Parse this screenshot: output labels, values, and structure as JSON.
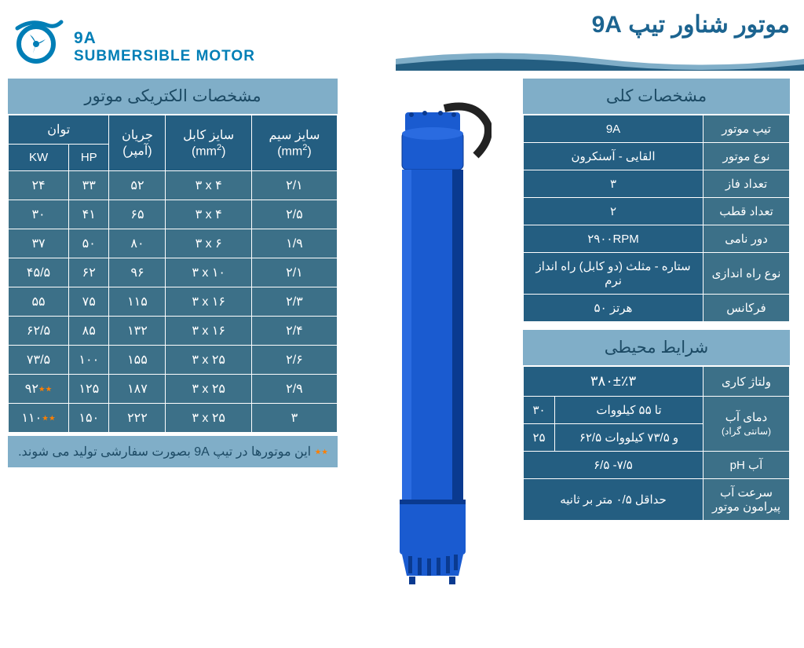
{
  "header": {
    "en_line1": "9A",
    "en_line2": "SUBMERSIBLE MOTOR",
    "fa_title": "موتور شناور تیپ 9A"
  },
  "colors": {
    "brand": "#007eb6",
    "dark": "#245e81",
    "mid": "#3c7088",
    "light": "#80aec8",
    "orange": "#ff7f00",
    "motor_blue": "#1a5bd0"
  },
  "elec": {
    "title": "مشخصات الکتریکی موتور",
    "headers": {
      "power": "توان",
      "kw": "KW",
      "hp": "HP",
      "current": "جریان",
      "current_unit": "(آمپر)",
      "cable": "سایز کابل",
      "cable_unit": "(mm²)",
      "wire": "سایز سیم",
      "wire_unit": "(mm²)"
    },
    "rows": [
      {
        "kw": "۲۴",
        "hp": "۳۳",
        "amp": "۵۲",
        "cable": "۳ x ۴",
        "wire": "۲/۱"
      },
      {
        "kw": "۳۰",
        "hp": "۴۱",
        "amp": "۶۵",
        "cable": "۳ x ۴",
        "wire": "۲/۵"
      },
      {
        "kw": "۳۷",
        "hp": "۵۰",
        "amp": "۸۰",
        "cable": "۳ x ۶",
        "wire": "۱/۹"
      },
      {
        "kw": "۴۵/۵",
        "hp": "۶۲",
        "amp": "۹۶",
        "cable": "۳ x ۱۰",
        "wire": "۲/۱"
      },
      {
        "kw": "۵۵",
        "hp": "۷۵",
        "amp": "۱۱۵",
        "cable": "۳ x ۱۶",
        "wire": "۲/۳"
      },
      {
        "kw": "۶۲/۵",
        "hp": "۸۵",
        "amp": "۱۳۲",
        "cable": "۳ x ۱۶",
        "wire": "۲/۴"
      },
      {
        "kw": "۷۳/۵",
        "hp": "۱۰۰",
        "amp": "۱۵۵",
        "cable": "۳ x ۲۵",
        "wire": "۲/۶"
      },
      {
        "kw": "۹۲٭٭",
        "hp": "۱۲۵",
        "amp": "۱۸۷",
        "cable": "۳ x ۲۵",
        "wire": "۲/۹"
      },
      {
        "kw": "۱۱۰٭٭",
        "hp": "۱۵۰",
        "amp": "۲۲۲",
        "cable": "۳ x ۲۵",
        "wire": "۳"
      }
    ],
    "footnote": "٭٭ این موتورها در تیپ 9A  بصورت سفارشی تولید می شوند."
  },
  "general": {
    "title": "مشخصات کلی",
    "rows": [
      {
        "label": "تیپ موتور",
        "value": "9A"
      },
      {
        "label": "نوع موتور",
        "value": "القایی - آسنکرون"
      },
      {
        "label": "تعداد فاز",
        "value": "۳"
      },
      {
        "label": "تعداد قطب",
        "value": "۲"
      },
      {
        "label": "دور نامی",
        "value": "۲۹۰۰RPM"
      },
      {
        "label": "نوع راه اندازی",
        "value": "ستاره - مثلث (دو کابل) راه انداز نرم"
      },
      {
        "label": "فرکانس",
        "value": "۵۰ هرتز"
      }
    ]
  },
  "env": {
    "title": "شرایط محیطی",
    "voltage_label": "ولتاژ کاری",
    "voltage_value": "۳۸۰±٪۳",
    "temp_label": "دمای آب",
    "temp_sublabel": "(سانتی گراد)",
    "temp_rows": [
      {
        "text": "تا ۵۵ کیلووات",
        "val": "۳۰"
      },
      {
        "text": "۶۲/۵ و ۷۳/۵ کیلووات",
        "val": "۲۵"
      }
    ],
    "ph_label": "pH  آب",
    "ph_value": "۶/۵ -۷/۵",
    "flow_label": "سرعت آب پیرامون موتور",
    "flow_value": "حداقل ۰/۵ متر بر ثانیه"
  }
}
